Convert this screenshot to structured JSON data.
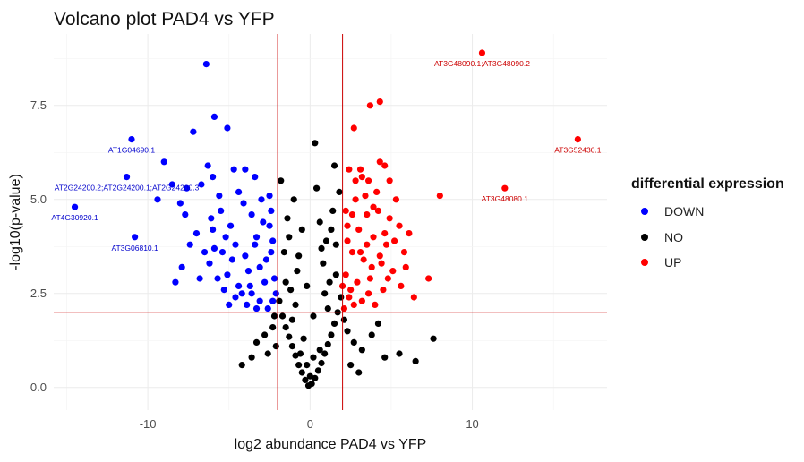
{
  "chart_data": {
    "type": "scatter",
    "title": "Volcano plot PAD4 vs YFP",
    "xlabel": "log2 abundance PAD4 vs YFP",
    "ylabel": "-log10(p-value)",
    "xlim": [
      -15.8,
      18.3
    ],
    "ylim": [
      -0.6,
      9.4
    ],
    "x_ticks": [
      -10,
      0,
      10
    ],
    "y_ticks": [
      0.0,
      2.5,
      5.0,
      7.5
    ],
    "y_tick_labels": [
      "0.0",
      "2.5",
      "5.0",
      "7.5"
    ],
    "grid": true,
    "thresholds": {
      "x": [
        -2,
        2
      ],
      "y": 2,
      "color": "#cc0000"
    },
    "legend": {
      "title": "differential expression",
      "placement": "right",
      "entries": [
        {
          "label": "DOWN",
          "color": "#0000ff"
        },
        {
          "label": "NO",
          "color": "#000000"
        },
        {
          "label": "UP",
          "color": "#ff0000"
        }
      ]
    },
    "series": [
      {
        "name": "DOWN",
        "color": "#0000ff",
        "points": [
          [
            -6.4,
            8.6
          ],
          [
            -5.9,
            7.2
          ],
          [
            -7.2,
            6.8
          ],
          [
            -5.1,
            6.9
          ],
          [
            -11.0,
            6.6
          ],
          [
            -9.0,
            6.0
          ],
          [
            -6.3,
            5.9
          ],
          [
            -11.3,
            5.6
          ],
          [
            -8.5,
            5.4
          ],
          [
            -7.6,
            5.3
          ],
          [
            -6.0,
            5.6
          ],
          [
            -4.7,
            5.8
          ],
          [
            -4.0,
            5.8
          ],
          [
            -3.4,
            5.6
          ],
          [
            -9.4,
            5.0
          ],
          [
            -8.0,
            4.9
          ],
          [
            -7.7,
            4.6
          ],
          [
            -5.5,
            4.7
          ],
          [
            -6.0,
            4.2
          ],
          [
            -3.6,
            4.6
          ],
          [
            -14.5,
            4.8
          ],
          [
            -10.8,
            4.0
          ],
          [
            -7.4,
            3.8
          ],
          [
            -5.9,
            3.7
          ],
          [
            -4.6,
            3.8
          ],
          [
            -3.3,
            4.0
          ],
          [
            -2.5,
            4.3
          ],
          [
            -7.9,
            3.2
          ],
          [
            -8.3,
            2.8
          ],
          [
            -6.2,
            3.3
          ],
          [
            -5.1,
            3.0
          ],
          [
            -4.0,
            3.5
          ],
          [
            -3.1,
            3.2
          ],
          [
            -2.4,
            3.6
          ],
          [
            -6.8,
            2.9
          ],
          [
            -5.3,
            2.6
          ],
          [
            -4.4,
            2.7
          ],
          [
            -3.6,
            2.5
          ],
          [
            -2.8,
            2.8
          ],
          [
            -2.3,
            2.3
          ],
          [
            -5.0,
            2.2
          ],
          [
            -3.9,
            2.2
          ],
          [
            -3.1,
            2.3
          ],
          [
            -2.6,
            2.1
          ],
          [
            -6.5,
            3.6
          ],
          [
            -7.0,
            4.1
          ],
          [
            -4.9,
            4.3
          ],
          [
            -5.6,
            5.1
          ],
          [
            -4.4,
            5.2
          ],
          [
            -3.0,
            5.0
          ],
          [
            -6.7,
            5.4
          ],
          [
            -4.2,
            2.5
          ],
          [
            -3.3,
            2.1
          ],
          [
            -2.2,
            2.9
          ],
          [
            -2.7,
            3.4
          ],
          [
            -3.8,
            3.1
          ],
          [
            -4.8,
            3.4
          ],
          [
            -5.7,
            2.9
          ],
          [
            -6.1,
            4.5
          ],
          [
            -5.2,
            4.0
          ],
          [
            -2.9,
            4.4
          ],
          [
            -3.4,
            3.8
          ],
          [
            -4.1,
            4.9
          ],
          [
            -2.5,
            5.1
          ],
          [
            -2.3,
            3.9
          ],
          [
            -3.7,
            2.7
          ],
          [
            -4.6,
            2.4
          ],
          [
            -2.1,
            2.5
          ],
          [
            -2.4,
            4.7
          ],
          [
            -5.4,
            3.6
          ]
        ]
      },
      {
        "name": "NO",
        "color": "#000000",
        "points": [
          [
            -0.1,
            0.05
          ],
          [
            0.1,
            0.1
          ],
          [
            -0.3,
            0.2
          ],
          [
            0.3,
            0.25
          ],
          [
            -0.5,
            0.4
          ],
          [
            0.5,
            0.45
          ],
          [
            -0.7,
            0.6
          ],
          [
            0.7,
            0.65
          ],
          [
            -0.9,
            0.85
          ],
          [
            0.9,
            0.9
          ],
          [
            -1.1,
            1.1
          ],
          [
            1.1,
            1.15
          ],
          [
            -1.3,
            1.35
          ],
          [
            1.3,
            1.4
          ],
          [
            -1.5,
            1.6
          ],
          [
            1.5,
            1.7
          ],
          [
            -1.7,
            1.9
          ],
          [
            1.7,
            2.0
          ],
          [
            -1.9,
            2.3
          ],
          [
            1.9,
            2.4
          ],
          [
            -1.2,
            2.6
          ],
          [
            1.2,
            2.8
          ],
          [
            -0.8,
            3.1
          ],
          [
            0.8,
            3.3
          ],
          [
            -1.6,
            3.6
          ],
          [
            1.6,
            3.8
          ],
          [
            -0.5,
            4.2
          ],
          [
            0.6,
            4.4
          ],
          [
            1.4,
            4.7
          ],
          [
            -1.0,
            5.0
          ],
          [
            0.4,
            5.3
          ],
          [
            -1.8,
            5.5
          ],
          [
            1.8,
            5.2
          ],
          [
            0.3,
            6.5
          ],
          [
            1.5,
            5.9
          ],
          [
            -1.4,
            4.5
          ],
          [
            1.0,
            3.9
          ],
          [
            -0.2,
            2.7
          ],
          [
            0.2,
            1.9
          ],
          [
            -0.4,
            1.3
          ],
          [
            0.6,
            1.0
          ],
          [
            -0.6,
            0.9
          ],
          [
            2.3,
            1.5
          ],
          [
            2.7,
            1.2
          ],
          [
            3.2,
            1.0
          ],
          [
            3.8,
            1.4
          ],
          [
            4.6,
            0.8
          ],
          [
            5.5,
            0.9
          ],
          [
            7.6,
            1.3
          ],
          [
            2.5,
            0.6
          ],
          [
            3.0,
            0.4
          ],
          [
            -2.3,
            1.6
          ],
          [
            -2.8,
            1.4
          ],
          [
            -3.3,
            1.2
          ],
          [
            -2.6,
            0.9
          ],
          [
            -3.6,
            0.8
          ],
          [
            -2.2,
            1.9
          ],
          [
            0.0,
            0.3
          ],
          [
            -0.2,
            0.6
          ],
          [
            0.2,
            0.8
          ],
          [
            -1.1,
            1.8
          ],
          [
            1.1,
            2.1
          ],
          [
            -0.9,
            2.2
          ],
          [
            0.9,
            2.5
          ],
          [
            -1.5,
            2.8
          ],
          [
            1.6,
            3.0
          ],
          [
            -0.7,
            3.5
          ],
          [
            0.7,
            3.7
          ],
          [
            -1.3,
            4.0
          ],
          [
            1.3,
            4.2
          ],
          [
            4.2,
            1.7
          ],
          [
            2.1,
            1.8
          ],
          [
            -2.1,
            1.1
          ],
          [
            -4.2,
            0.6
          ],
          [
            6.5,
            0.7
          ]
        ]
      },
      {
        "name": "UP",
        "color": "#ff0000",
        "points": [
          [
            10.6,
            8.9
          ],
          [
            16.5,
            6.6
          ],
          [
            4.3,
            7.6
          ],
          [
            3.7,
            7.5
          ],
          [
            2.7,
            6.9
          ],
          [
            4.3,
            6.0
          ],
          [
            4.6,
            5.9
          ],
          [
            8.0,
            5.1
          ],
          [
            12.0,
            5.3
          ],
          [
            2.4,
            5.8
          ],
          [
            3.1,
            5.8
          ],
          [
            3.6,
            5.5
          ],
          [
            4.9,
            5.5
          ],
          [
            5.3,
            5.0
          ],
          [
            2.8,
            5.0
          ],
          [
            3.5,
            4.6
          ],
          [
            4.2,
            4.7
          ],
          [
            5.5,
            4.3
          ],
          [
            6.1,
            4.1
          ],
          [
            2.3,
            4.3
          ],
          [
            3.0,
            4.2
          ],
          [
            3.9,
            4.0
          ],
          [
            4.7,
            3.8
          ],
          [
            5.8,
            3.6
          ],
          [
            2.6,
            3.6
          ],
          [
            3.3,
            3.4
          ],
          [
            4.4,
            3.3
          ],
          [
            5.1,
            3.1
          ],
          [
            2.2,
            3.0
          ],
          [
            2.9,
            2.8
          ],
          [
            3.7,
            2.9
          ],
          [
            4.5,
            2.6
          ],
          [
            5.6,
            2.7
          ],
          [
            2.4,
            2.4
          ],
          [
            3.2,
            2.3
          ],
          [
            4.0,
            2.2
          ],
          [
            2.1,
            2.1
          ],
          [
            7.3,
            2.9
          ],
          [
            6.4,
            2.4
          ],
          [
            2.5,
            2.6
          ],
          [
            3.5,
            3.8
          ],
          [
            4.9,
            4.5
          ],
          [
            2.8,
            5.5
          ],
          [
            3.4,
            5.1
          ],
          [
            4.1,
            5.2
          ],
          [
            2.2,
            4.7
          ],
          [
            5.2,
            3.9
          ],
          [
            3.8,
            3.2
          ],
          [
            2.7,
            2.2
          ],
          [
            4.8,
            2.9
          ],
          [
            3.1,
            3.6
          ],
          [
            2.3,
            3.9
          ],
          [
            4.6,
            4.1
          ],
          [
            3.9,
            4.8
          ],
          [
            2.6,
            4.6
          ],
          [
            3.6,
            2.5
          ],
          [
            5.9,
            3.2
          ],
          [
            2.0,
            2.7
          ],
          [
            4.3,
            3.5
          ],
          [
            3.2,
            5.6
          ]
        ]
      }
    ],
    "annotations": [
      {
        "x": -11.0,
        "y": 6.6,
        "text": "AT1G04690.1",
        "color": "#0000cc"
      },
      {
        "x": -11.3,
        "y": 5.6,
        "text": "AT2G24200.2;AT2G24200.1;AT2G24200.3",
        "color": "#0000cc"
      },
      {
        "x": -14.5,
        "y": 4.8,
        "text": "AT4G30920.1",
        "color": "#0000cc"
      },
      {
        "x": -10.8,
        "y": 4.0,
        "text": "AT3G06810.1",
        "color": "#0000cc"
      },
      {
        "x": 10.6,
        "y": 8.9,
        "text": "AT3G48090.1;AT3G48090.2",
        "color": "#cc0000"
      },
      {
        "x": 16.5,
        "y": 6.6,
        "text": "AT3G52430.1",
        "color": "#cc0000"
      },
      {
        "x": 12.0,
        "y": 5.3,
        "text": "AT3G48080.1",
        "color": "#cc0000"
      }
    ]
  }
}
